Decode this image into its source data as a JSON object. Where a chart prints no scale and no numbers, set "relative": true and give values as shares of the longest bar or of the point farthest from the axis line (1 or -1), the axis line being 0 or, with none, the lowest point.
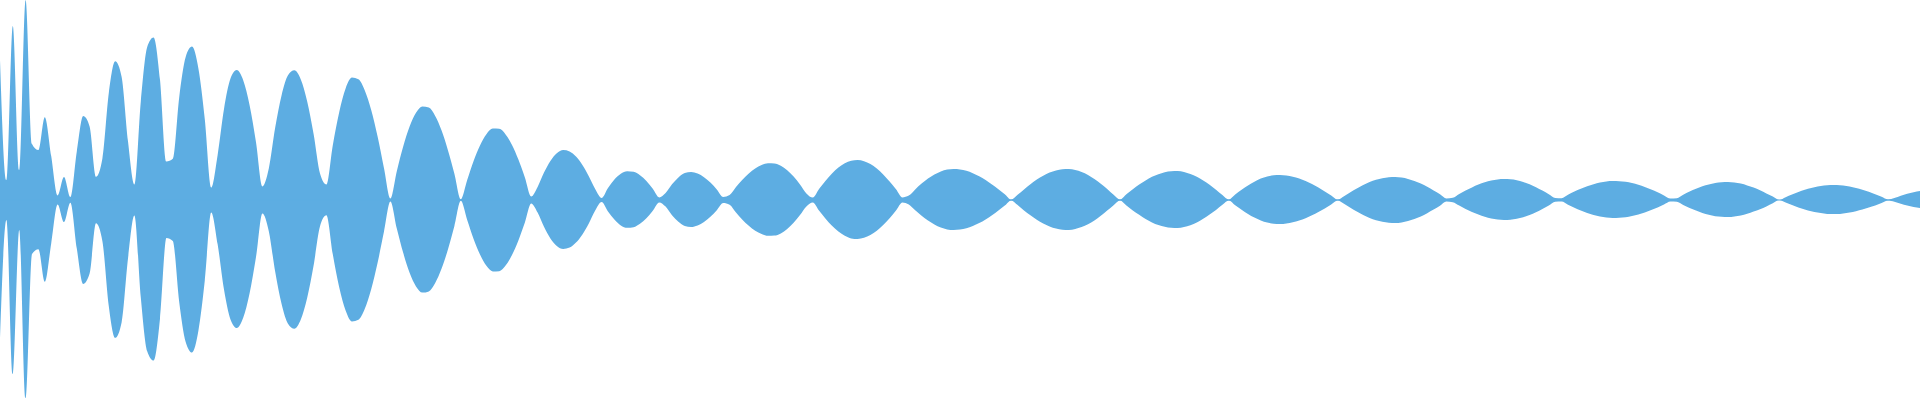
{
  "chart_data": {
    "type": "area",
    "relative": true,
    "tick_labels": false,
    "ref_lines": [
      {
        "axis": "y",
        "value": 0,
        "color": "#5dade2"
      }
    ],
    "categories": [
      null,
      null,
      null,
      null,
      null,
      null,
      null,
      null,
      null,
      null,
      null,
      null,
      null,
      null,
      null,
      null,
      null,
      null,
      null,
      null,
      null,
      null,
      null,
      null,
      null,
      null,
      null,
      null,
      null,
      null,
      null,
      null,
      null,
      null,
      null,
      null,
      null,
      null,
      null,
      null,
      null,
      null,
      null,
      null,
      null,
      null,
      null,
      null,
      null,
      null,
      null,
      null,
      null,
      null,
      null,
      null,
      null,
      null,
      null,
      null,
      null,
      null,
      null,
      null,
      null,
      null,
      null,
      null,
      null,
      null,
      null,
      null,
      null,
      null,
      null,
      null,
      null,
      null,
      null,
      null,
      null,
      null,
      null,
      null,
      null,
      null,
      null,
      null,
      null,
      null,
      null,
      null,
      null,
      null,
      null,
      null,
      null,
      null,
      null,
      null,
      null,
      null,
      null,
      null,
      null,
      null,
      null,
      null,
      null,
      null,
      null,
      null,
      null,
      null,
      null,
      null,
      null,
      null,
      null,
      null,
      null,
      null,
      null,
      null,
      null,
      null,
      null,
      null,
      null,
      null,
      null,
      null,
      null,
      null,
      null,
      null,
      null,
      null,
      null,
      null,
      null,
      null,
      null,
      null,
      null,
      null,
      null,
      null,
      null,
      null,
      null,
      null,
      null,
      null,
      null,
      null,
      null,
      null,
      null,
      null,
      null,
      null,
      null,
      null,
      null,
      null,
      null,
      null,
      null,
      null,
      null,
      null,
      null,
      null,
      null,
      null,
      null,
      null,
      null,
      null,
      null,
      null,
      null,
      null,
      null,
      null,
      null,
      null,
      null,
      null,
      null,
      null,
      null,
      null,
      null,
      null,
      null,
      null,
      null,
      null,
      null,
      null,
      null,
      null,
      null,
      null,
      null,
      null,
      null,
      null,
      null,
      null,
      null,
      null,
      null,
      null,
      null,
      null,
      null,
      null,
      null,
      null,
      null,
      null,
      null,
      null,
      null,
      null,
      null,
      null,
      null,
      null,
      null,
      null,
      null,
      null,
      null,
      null,
      null,
      null,
      null,
      null,
      null,
      null,
      null,
      null,
      null,
      null,
      null,
      null,
      null,
      null,
      null,
      null,
      null,
      null,
      null,
      null,
      null,
      null,
      null,
      null,
      null,
      null,
      null,
      null,
      null,
      null,
      null,
      null,
      null,
      null,
      null,
      null,
      null,
      null,
      null,
      null,
      null,
      null,
      null,
      null,
      null,
      null,
      null,
      null,
      null,
      null,
      null,
      null,
      null,
      null,
      null,
      null,
      null,
      null,
      null,
      null,
      null,
      null,
      null
    ],
    "series": [
      {
        "color": "#5dade2",
        "values": [
          0.7,
          0.1,
          0.87,
          0.15,
          1,
          0.28,
          0.25,
          0.414,
          0.22,
          0.023,
          0.115,
          0.015,
          0.243,
          0.42,
          0.368,
          0.116,
          0.208,
          0.535,
          0.694,
          0.616,
          0.294,
          0.078,
          0.493,
          0.765,
          0.813,
          0.601,
          0.193,
          0.206,
          0.513,
          0.714,
          0.768,
          0.658,
          0.404,
          0.062,
          0.224,
          0.455,
          0.606,
          0.65,
          0.599,
          0.474,
          0.289,
          0.068,
          0.157,
          0.362,
          0.524,
          0.624,
          0.649,
          0.603,
          0.493,
          0.33,
          0.132,
          0.077,
          0.274,
          0.439,
          0.557,
          0.612,
          0.604,
          0.548,
          0.45,
          0.317,
          0.159,
          0.008,
          0.144,
          0.267,
          0.367,
          0.436,
          0.468,
          0.462,
          0.42,
          0.347,
          0.248,
          0.131,
          0.004,
          0.1,
          0.195,
          0.273,
          0.329,
          0.357,
          0.356,
          0.328,
          0.275,
          0.202,
          0.114,
          0.017,
          0.065,
          0.137,
          0.195,
          0.234,
          0.25,
          0.243,
          0.217,
          0.175,
          0.119,
          0.055,
          0.01,
          0.06,
          0.102,
          0.131,
          0.144,
          0.141,
          0.124,
          0.095,
          0.056,
          0.013,
          0.035,
          0.079,
          0.113,
          0.135,
          0.14,
          0.132,
          0.114,
          0.087,
          0.053,
          0.015,
          0.025,
          0.065,
          0.101,
          0.133,
          0.158,
          0.175,
          0.184,
          0.183,
          0.171,
          0.149,
          0.117,
          0.078,
          0.033,
          0.012,
          0.056,
          0.096,
          0.132,
          0.162,
          0.184,
          0.196,
          0.2,
          0.194,
          0.18,
          0.158,
          0.128,
          0.093,
          0.054,
          0.013,
          0.022,
          0.053,
          0.082,
          0.107,
          0.127,
          0.143,
          0.152,
          0.155,
          0.153,
          0.146,
          0.134,
          0.119,
          0.1,
          0.078,
          0.054,
          0.029,
          0.002,
          0.026,
          0.053,
          0.079,
          0.102,
          0.121,
          0.137,
          0.148,
          0.154,
          0.155,
          0.15,
          0.14,
          0.125,
          0.105,
          0.081,
          0.055,
          0.026,
          0.003,
          0.029,
          0.054,
          0.077,
          0.098,
          0.116,
          0.129,
          0.139,
          0.144,
          0.145,
          0.14,
          0.13,
          0.116,
          0.098,
          0.076,
          0.051,
          0.025,
          0.002,
          0.027,
          0.051,
          0.073,
          0.091,
          0.107,
          0.117,
          0.124,
          0.125,
          0.122,
          0.116,
          0.107,
          0.095,
          0.08,
          0.062,
          0.043,
          0.023,
          0.002,
          0.019,
          0.039,
          0.058,
          0.075,
          0.09,
          0.101,
          0.109,
          0.114,
          0.115,
          0.112,
          0.105,
          0.095,
          0.082,
          0.066,
          0.048,
          0.029,
          0.008,
          0.011,
          0.03,
          0.047,
          0.063,
          0.077,
          0.089,
          0.097,
          0.103,
          0.105,
          0.104,
          0.099,
          0.09,
          0.079,
          0.064,
          0.047,
          0.029,
          0.01,
          0.009,
          0.026,
          0.042,
          0.056,
          0.069,
          0.079,
          0.087,
          0.093,
          0.095,
          0.094,
          0.091,
          0.085,
          0.076,
          0.065,
          0.053,
          0.039,
          0.023,
          0.007,
          0.009,
          0.026,
          0.042,
          0.056,
          0.069,
          0.078,
          0.085,
          0.089,
          0.09,
          0.087,
          0.082,
          0.073,
          0.062,
          0.049,
          0.033,
          0.017,
          0,
          0.014,
          0.027,
          0.04,
          0.051,
          0.06,
          0.067,
          0.072,
          0.075,
          0.075,
          0.072,
          0.067,
          0.06,
          0.051,
          0.041,
          0.029,
          0.016,
          0.003,
          0.01,
          0.021,
          0.031,
          0.039,
          0.045
        ]
      },
      {
        "color": "#5dade2",
        "values": [
          -0.69,
          -0.1,
          -0.87,
          -0.15,
          -0.99,
          -0.27,
          -0.246,
          -0.409,
          -0.217,
          -0.022,
          -0.11,
          -0.014,
          -0.243,
          -0.42,
          -0.368,
          -0.116,
          -0.206,
          -0.531,
          -0.689,
          -0.612,
          -0.292,
          -0.077,
          -0.487,
          -0.756,
          -0.803,
          -0.594,
          -0.19,
          -0.205,
          -0.51,
          -0.709,
          -0.763,
          -0.654,
          -0.402,
          -0.062,
          -0.22,
          -0.448,
          -0.596,
          -0.64,
          -0.589,
          -0.466,
          -0.285,
          -0.067,
          -0.156,
          -0.359,
          -0.52,
          -0.619,
          -0.644,
          -0.598,
          -0.489,
          -0.328,
          -0.131,
          -0.076,
          -0.271,
          -0.436,
          -0.552,
          -0.607,
          -0.599,
          -0.544,
          -0.446,
          -0.314,
          -0.158,
          -0.008,
          -0.142,
          -0.264,
          -0.364,
          -0.432,
          -0.463,
          -0.457,
          -0.415,
          -0.343,
          -0.246,
          -0.13,
          -0.004,
          -0.1,
          -0.195,
          -0.273,
          -0.329,
          -0.357,
          -0.356,
          -0.328,
          -0.275,
          -0.202,
          -0.114,
          -0.017,
          -0.063,
          -0.134,
          -0.192,
          -0.23,
          -0.245,
          -0.238,
          -0.213,
          -0.172,
          -0.117,
          -0.053,
          -0.01,
          -0.058,
          -0.098,
          -0.127,
          -0.139,
          -0.136,
          -0.119,
          -0.091,
          -0.054,
          -0.012,
          -0.033,
          -0.076,
          -0.109,
          -0.13,
          -0.135,
          -0.127,
          -0.11,
          -0.084,
          -0.051,
          -0.015,
          -0.024,
          -0.063,
          -0.099,
          -0.129,
          -0.154,
          -0.17,
          -0.179,
          -0.178,
          -0.167,
          -0.145,
          -0.114,
          -0.075,
          -0.032,
          -0.012,
          -0.054,
          -0.094,
          -0.129,
          -0.158,
          -0.179,
          -0.192,
          -0.195,
          -0.189,
          -0.175,
          -0.154,
          -0.125,
          -0.091,
          -0.053,
          -0.012,
          -0.022,
          -0.051,
          -0.079,
          -0.103,
          -0.123,
          -0.138,
          -0.147,
          -0.15,
          -0.148,
          -0.141,
          -0.13,
          -0.115,
          -0.097,
          -0.076,
          -0.052,
          -0.028,
          -0.002,
          -0.025,
          -0.052,
          -0.076,
          -0.099,
          -0.117,
          -0.132,
          -0.143,
          -0.149,
          -0.15,
          -0.145,
          -0.135,
          -0.121,
          -0.102,
          -0.079,
          -0.053,
          -0.026,
          -0.003,
          -0.028,
          -0.052,
          -0.074,
          -0.095,
          -0.112,
          -0.125,
          -0.134,
          -0.139,
          -0.14,
          -0.135,
          -0.126,
          -0.112,
          -0.094,
          -0.073,
          -0.05,
          -0.024,
          -0.002,
          -0.026,
          -0.049,
          -0.07,
          -0.088,
          -0.102,
          -0.113,
          -0.119,
          -0.12,
          -0.117,
          -0.111,
          -0.102,
          -0.091,
          -0.076,
          -0.06,
          -0.042,
          -0.022,
          -0.002,
          -0.019,
          -0.039,
          -0.058,
          -0.075,
          -0.09,
          -0.101,
          -0.109,
          -0.114,
          -0.115,
          -0.112,
          -0.105,
          -0.095,
          -0.082,
          -0.066,
          -0.048,
          -0.029,
          -0.008,
          -0.011,
          -0.028,
          -0.045,
          -0.06,
          -0.073,
          -0.084,
          -0.093,
          -0.098,
          -0.1,
          -0.099,
          -0.094,
          -0.086,
          -0.075,
          -0.061,
          -0.045,
          -0.028,
          -0.009,
          -0.008,
          -0.024,
          -0.039,
          -0.053,
          -0.065,
          -0.075,
          -0.083,
          -0.088,
          -0.09,
          -0.089,
          -0.086,
          -0.08,
          -0.072,
          -0.062,
          -0.05,
          -0.037,
          -0.022,
          -0.007,
          -0.009,
          -0.025,
          -0.04,
          -0.053,
          -0.065,
          -0.074,
          -0.081,
          -0.084,
          -0.085,
          -0.082,
          -0.077,
          -0.069,
          -0.058,
          -0.046,
          -0.032,
          -0.016,
          0,
          -0.013,
          -0.025,
          -0.037,
          -0.047,
          -0.056,
          -0.063,
          -0.067,
          -0.07,
          -0.07,
          -0.067,
          -0.063,
          -0.056,
          -0.048,
          -0.038,
          -0.027,
          -0.015,
          -0.003,
          -0.009,
          -0.019,
          -0.028,
          -0.035,
          -0.04
        ]
      }
    ]
  }
}
